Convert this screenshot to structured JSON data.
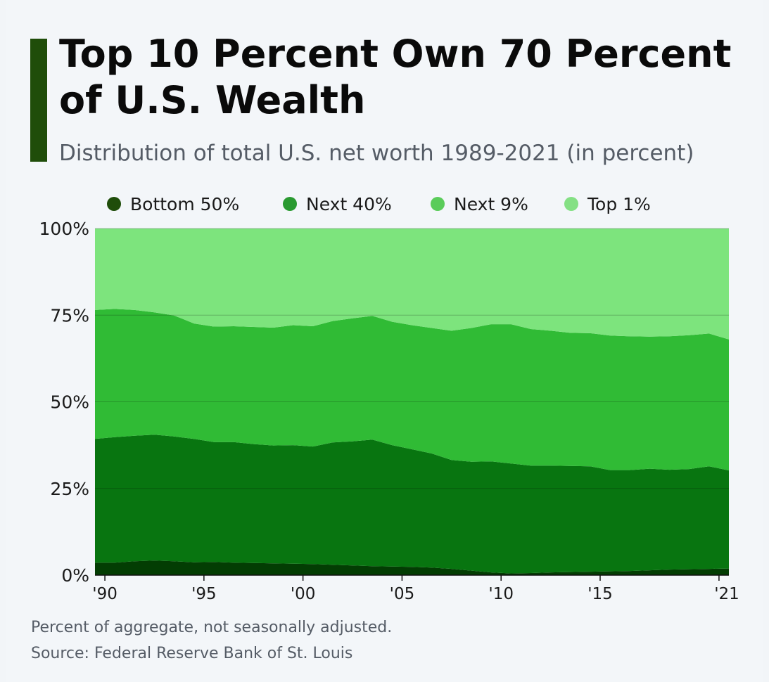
{
  "header": {
    "title": "Top 10 Percent Own 70 Percent of U.S. Wealth",
    "subtitle": "Distribution of total U.S. net worth 1989-2021 (in percent)"
  },
  "legend": [
    {
      "label": "Bottom 50%",
      "color": "#1f4d0a"
    },
    {
      "label": "Next 40%",
      "color": "#2a9a31"
    },
    {
      "label": "Next 9%",
      "color": "#5acc5a"
    },
    {
      "label": "Top 1%",
      "color": "#84e084"
    }
  ],
  "footer": {
    "note": "Percent of aggregate, not seasonally adjusted.",
    "source": "Source: Federal Reserve Bank of St. Louis"
  },
  "chart_data": {
    "type": "area",
    "stacked": true,
    "title": "Top 10 Percent Own 70 Percent of U.S. Wealth",
    "subtitle": "Distribution of total U.S. net worth 1989-2021 (in percent)",
    "xlabel": "",
    "ylabel": "",
    "xlim": [
      1989.5,
      2021.5
    ],
    "ylim": [
      0,
      100
    ],
    "y_ticks": [
      0,
      25,
      50,
      75,
      100
    ],
    "y_tick_labels": [
      "0%",
      "25%",
      "50%",
      "75%",
      "100%"
    ],
    "x_ticks": [
      1990,
      1995,
      2000,
      2005,
      2010,
      2015,
      2021
    ],
    "x_tick_labels": [
      "'90",
      "'95",
      "'00",
      "'05",
      "'10",
      "'15",
      "'21"
    ],
    "grid": true,
    "legend_position": "top",
    "x": [
      1989.5,
      1990.5,
      1991.5,
      1992.5,
      1993.5,
      1994.5,
      1995.5,
      1996.5,
      1997.5,
      1998.5,
      1999.5,
      2000.5,
      2001.5,
      2002.5,
      2003.5,
      2004.5,
      2005.5,
      2006.5,
      2007.5,
      2008.5,
      2009.5,
      2010.5,
      2011.5,
      2012.5,
      2013.5,
      2014.5,
      2015.5,
      2016.5,
      2017.5,
      2018.5,
      2019.5,
      2020.5,
      2021.5
    ],
    "series": [
      {
        "name": "Bottom 50%",
        "color": "#033d03",
        "values": [
          3.6,
          3.6,
          4.0,
          4.2,
          4.0,
          3.7,
          3.8,
          3.6,
          3.5,
          3.4,
          3.3,
          3.2,
          3.0,
          2.8,
          2.6,
          2.5,
          2.4,
          2.2,
          1.8,
          1.3,
          0.8,
          0.5,
          0.6,
          0.8,
          0.9,
          1.0,
          1.1,
          1.2,
          1.4,
          1.6,
          1.7,
          1.8,
          1.9
        ]
      },
      {
        "name": "Next 40%",
        "color": "#087510",
        "values": [
          35.7,
          36.2,
          36.2,
          36.3,
          36.0,
          35.6,
          34.6,
          34.8,
          34.3,
          34.0,
          34.2,
          33.9,
          35.3,
          35.8,
          36.5,
          35.0,
          33.9,
          32.9,
          31.4,
          31.4,
          32.0,
          31.7,
          31.0,
          30.8,
          30.6,
          30.4,
          29.2,
          29.1,
          29.3,
          28.8,
          28.9,
          29.6,
          28.3
        ]
      },
      {
        "name": "Next 9%",
        "color": "#30bb35",
        "values": [
          37.2,
          37.0,
          36.3,
          35.3,
          34.9,
          33.3,
          33.3,
          33.4,
          33.8,
          34.0,
          34.6,
          34.7,
          35.0,
          35.5,
          35.7,
          35.6,
          35.8,
          36.2,
          37.3,
          38.6,
          39.6,
          40.2,
          39.4,
          38.9,
          38.4,
          38.4,
          38.8,
          38.6,
          38.1,
          38.5,
          38.6,
          38.3,
          37.8
        ]
      },
      {
        "name": "Top 1%",
        "color": "#7de47d",
        "values": [
          23.5,
          23.2,
          23.5,
          24.2,
          25.1,
          27.4,
          28.3,
          28.2,
          28.4,
          28.6,
          27.9,
          28.2,
          26.7,
          25.9,
          25.2,
          26.9,
          27.9,
          28.7,
          29.5,
          28.7,
          27.6,
          27.6,
          29.0,
          29.5,
          30.1,
          30.2,
          30.9,
          31.1,
          31.2,
          31.1,
          30.8,
          30.3,
          32.0
        ]
      }
    ]
  }
}
